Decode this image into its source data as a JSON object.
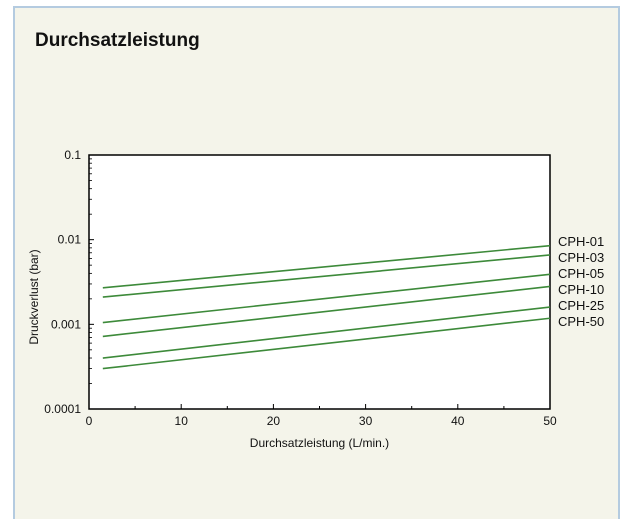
{
  "panel": {
    "title": "Durchsatzleistung"
  },
  "chart_data": {
    "type": "line",
    "title": "Durchsatzleistung",
    "xlabel": "Durchsatzleistung (L/min.)",
    "ylabel": "Druckverlust (bar)",
    "xlim": [
      0,
      50
    ],
    "ylim": [
      0.0001,
      0.1
    ],
    "yscale": "log",
    "grid": false,
    "legend": "series labels at right end of lines",
    "x_ticks": [
      "0",
      "10",
      "20",
      "30",
      "40",
      "50"
    ],
    "y_ticks": [
      "0.0001",
      "0.001",
      "0.01",
      "0.1"
    ],
    "line_color": "#3d8a3a",
    "series": [
      {
        "name": "CPH-01",
        "x": [
          1.5,
          50
        ],
        "y": [
          0.0027,
          0.0085
        ]
      },
      {
        "name": "CPH-03",
        "x": [
          1.5,
          50
        ],
        "y": [
          0.0021,
          0.0066
        ]
      },
      {
        "name": "CPH-05",
        "x": [
          1.5,
          50
        ],
        "y": [
          0.00105,
          0.0039
        ]
      },
      {
        "name": "CPH-10",
        "x": [
          1.5,
          50
        ],
        "y": [
          0.00072,
          0.0028
        ]
      },
      {
        "name": "CPH-25",
        "x": [
          1.5,
          50
        ],
        "y": [
          0.0004,
          0.0016
        ]
      },
      {
        "name": "CPH-50",
        "x": [
          1.5,
          50
        ],
        "y": [
          0.0003,
          0.00118
        ]
      }
    ]
  }
}
